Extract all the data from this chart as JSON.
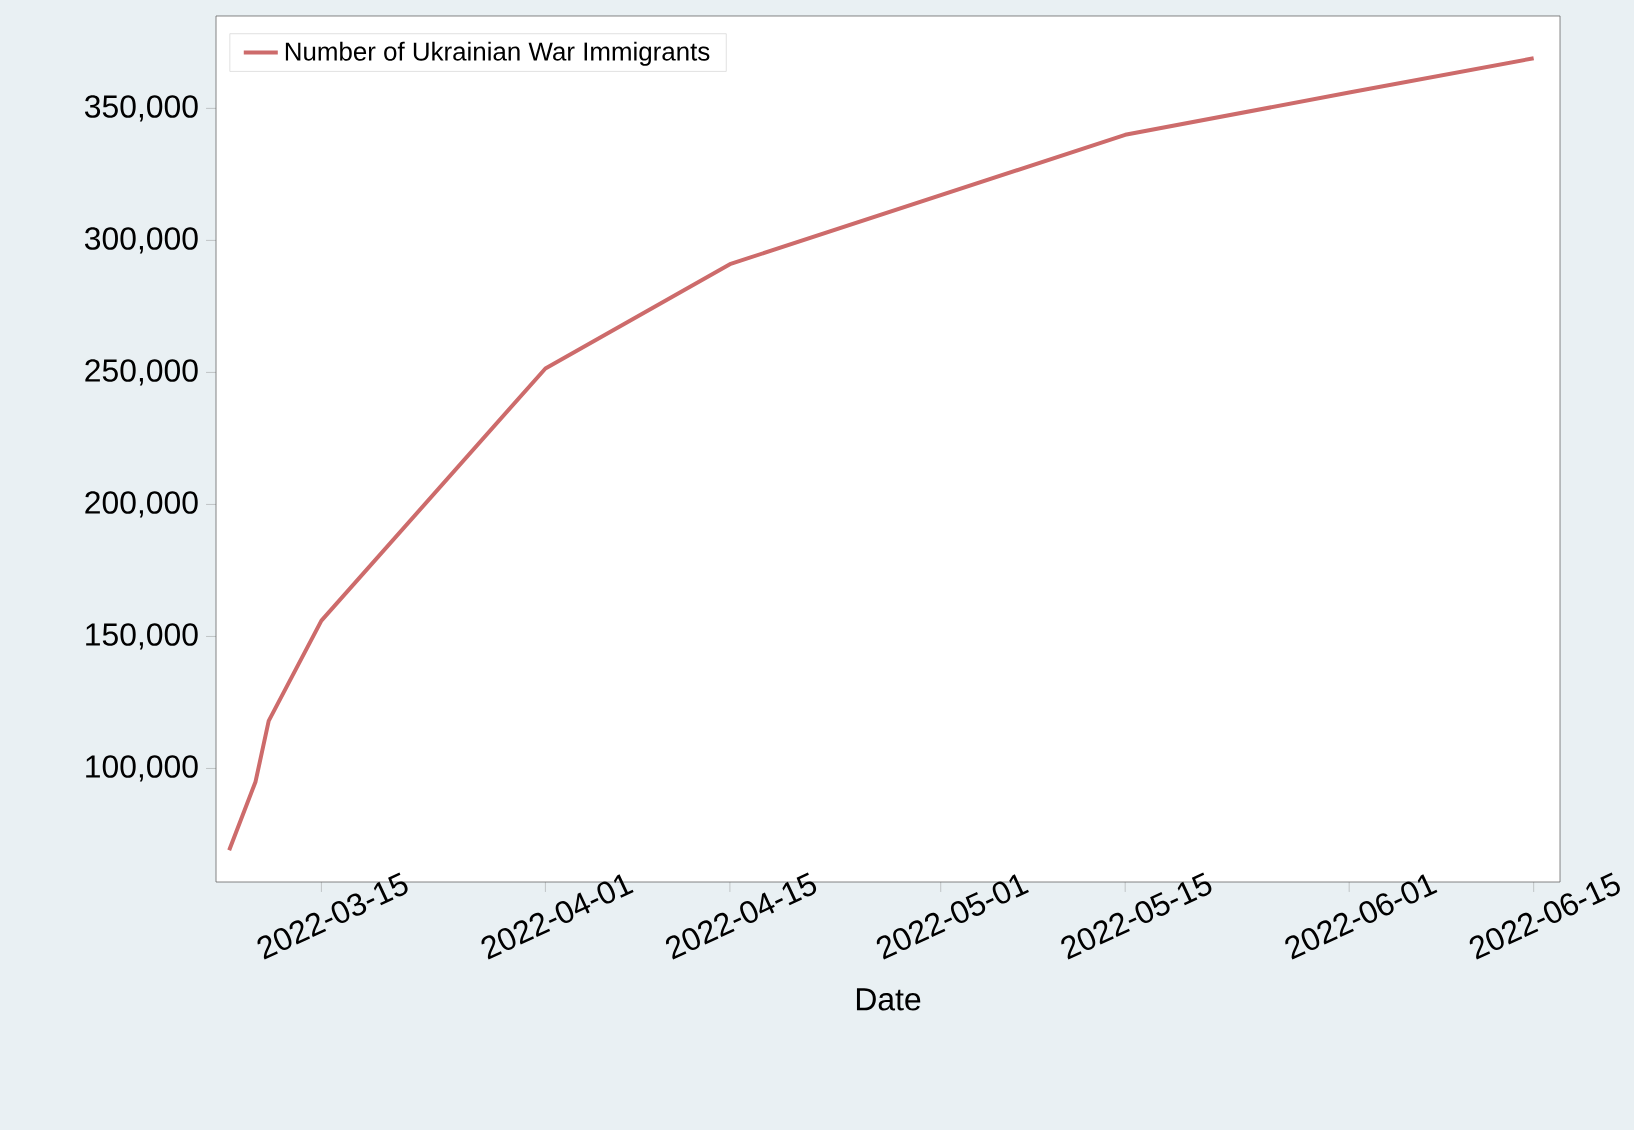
{
  "chart_data": {
    "type": "line",
    "xlabel": "Date",
    "x": [
      "2022-03-08",
      "2022-03-10",
      "2022-03-11",
      "2022-03-15",
      "2022-04-01",
      "2022-04-15",
      "2022-05-15",
      "2022-06-01",
      "2022-06-15"
    ],
    "series": [
      {
        "name": "Number of Ukrainian War Immigrants",
        "color": "#cd6b6b",
        "values": [
          69000,
          95000,
          118000,
          156000,
          251500,
          291000,
          340000,
          356000,
          369000
        ]
      }
    ],
    "xlim": [
      "2022-03-07",
      "2022-06-17"
    ],
    "ylim": [
      57000,
      385000
    ],
    "xticks": [
      "2022-03-15",
      "2022-04-01",
      "2022-04-15",
      "2022-05-01",
      "2022-05-15",
      "2022-06-01",
      "2022-06-15"
    ],
    "yticks": [
      {
        "value": 100000,
        "label": "100,000"
      },
      {
        "value": 150000,
        "label": "150,000"
      },
      {
        "value": 200000,
        "label": "200,000"
      },
      {
        "value": 250000,
        "label": "250,000"
      },
      {
        "value": 300000,
        "label": "300,000"
      },
      {
        "value": 350000,
        "label": "350,000"
      }
    ],
    "grid": false,
    "legend": "top left",
    "marker": "none",
    "line_style": "solid"
  }
}
